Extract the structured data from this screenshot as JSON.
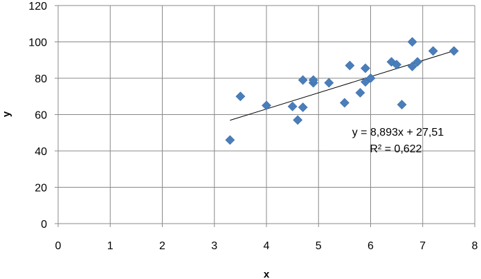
{
  "chart_data": {
    "type": "scatter",
    "xlabel": "x",
    "ylabel": "y",
    "xlim": [
      0,
      8
    ],
    "ylim": [
      0,
      120
    ],
    "x_ticks": [
      "0",
      "1",
      "2",
      "3",
      "4",
      "5",
      "6",
      "7",
      "8"
    ],
    "y_ticks": [
      "0",
      "20",
      "40",
      "60",
      "80",
      "100",
      "120"
    ],
    "grid": true,
    "legend": "none",
    "marker": "diamond",
    "marker_color": "#4a7ebb",
    "trendline_color": "#000000",
    "series": [
      {
        "points": [
          {
            "x": 3.3,
            "y": 46
          },
          {
            "x": 3.5,
            "y": 70
          },
          {
            "x": 4.0,
            "y": 65
          },
          {
            "x": 4.5,
            "y": 64.5
          },
          {
            "x": 4.6,
            "y": 57
          },
          {
            "x": 4.7,
            "y": 64
          },
          {
            "x": 4.7,
            "y": 79
          },
          {
            "x": 4.9,
            "y": 77.5
          },
          {
            "x": 4.9,
            "y": 79
          },
          {
            "x": 5.2,
            "y": 77.5
          },
          {
            "x": 5.5,
            "y": 66.5
          },
          {
            "x": 5.6,
            "y": 87
          },
          {
            "x": 5.8,
            "y": 72
          },
          {
            "x": 5.9,
            "y": 78
          },
          {
            "x": 5.9,
            "y": 85.5
          },
          {
            "x": 6.0,
            "y": 80
          },
          {
            "x": 6.4,
            "y": 89
          },
          {
            "x": 6.5,
            "y": 87.5
          },
          {
            "x": 6.6,
            "y": 65.5
          },
          {
            "x": 6.8,
            "y": 86.5
          },
          {
            "x": 6.8,
            "y": 100
          },
          {
            "x": 6.9,
            "y": 89
          },
          {
            "x": 7.2,
            "y": 95
          },
          {
            "x": 7.6,
            "y": 95
          }
        ]
      }
    ],
    "trendline": {
      "type": "linear",
      "slope": 8.893,
      "intercept": 27.51,
      "x_start": 3.3,
      "x_end": 7.6,
      "equation_label": "y = 8,893x + 27,51",
      "r2_label": "R² = 0,622"
    }
  }
}
